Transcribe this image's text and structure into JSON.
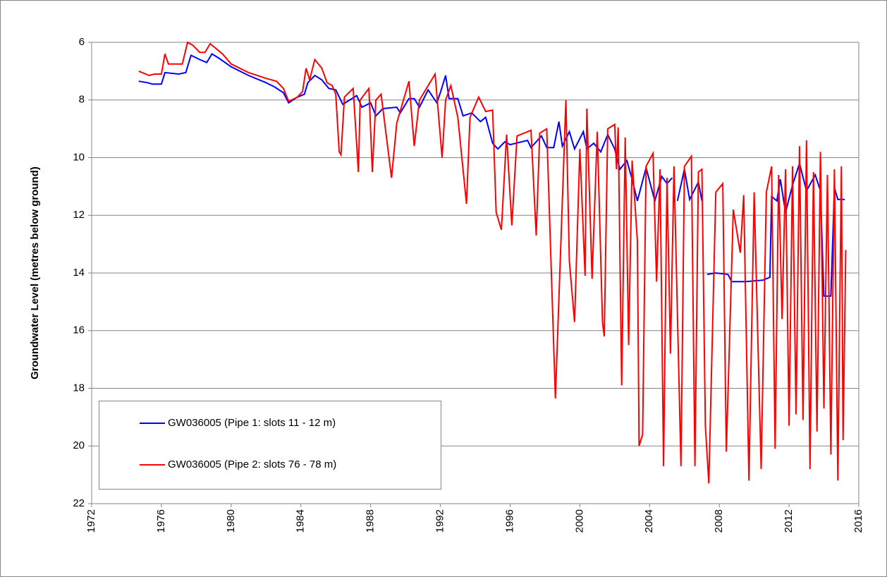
{
  "chart_data": {
    "type": "line",
    "y_label": "Groundwater Level (metres below ground)",
    "ylim": [
      6,
      22
    ],
    "yticks": [
      6,
      8,
      10,
      12,
      14,
      16,
      18,
      20,
      22
    ],
    "y_inverted": true,
    "xlim": [
      1972,
      2016
    ],
    "xticks": [
      1972,
      1976,
      1980,
      1984,
      1988,
      1992,
      1996,
      2000,
      2004,
      2008,
      2012,
      2016
    ],
    "grid": true,
    "legend": "lower left",
    "series": [
      {
        "name": "GW036005 (Pipe 1: slots 11 - 12 m)",
        "color": "#0000ff",
        "x": [
          1974.7,
          1975.2,
          1975.5,
          1976.0,
          1976.2,
          1977.0,
          1977.4,
          1977.7,
          1978.2,
          1978.6,
          1978.9,
          1979.3,
          1980.0,
          1981.0,
          1982.0,
          1982.5,
          1983.0,
          1983.3,
          1983.8,
          1984.2,
          1984.4,
          1984.8,
          1985.2,
          1985.6,
          1986.0,
          1986.4,
          1987.2,
          1987.5,
          1988.0,
          1988.3,
          1988.7,
          1989.5,
          1989.7,
          1990.2,
          1990.5,
          1990.8,
          1991.3,
          1991.8,
          1992.0,
          1992.3,
          1992.5,
          1993.0,
          1993.3,
          1993.8,
          1994.3,
          1994.6,
          1995.0,
          1995.3,
          1995.7,
          1996.0,
          1997.0,
          1997.2,
          1997.8,
          1998.1,
          1998.5,
          1998.8,
          1999.0,
          1999.4,
          1999.7,
          2000.2,
          2000.4,
          2000.8,
          2001.2,
          2001.6,
          2002.0,
          2002.3,
          2002.7,
          2003.0,
          2003.3,
          2003.8,
          2004.3,
          2004.7,
          2005.0,
          2005.3,
          2005.45,
          2005.6,
          2006.0,
          2006.3,
          2006.8,
          2007.0,
          2007.15,
          2007.3,
          2007.8,
          2008.5,
          2008.7,
          2009.5,
          2010.5,
          2010.9,
          2011.0,
          2011.3,
          2011.5,
          2011.8,
          2012.2,
          2012.6,
          2013.0,
          2013.5,
          2013.8,
          2014.0,
          2014.4,
          2014.6,
          2014.8,
          2015.2
        ],
        "values": [
          7.35,
          7.4,
          7.45,
          7.45,
          7.05,
          7.1,
          7.05,
          6.45,
          6.6,
          6.7,
          6.4,
          6.55,
          6.85,
          7.15,
          7.4,
          7.55,
          7.75,
          8.1,
          7.9,
          7.8,
          7.4,
          7.15,
          7.3,
          7.6,
          7.65,
          8.15,
          7.85,
          8.25,
          8.1,
          8.55,
          8.3,
          8.25,
          8.45,
          7.95,
          7.95,
          8.25,
          7.65,
          8.1,
          7.75,
          7.15,
          7.95,
          7.95,
          8.55,
          8.45,
          8.75,
          8.6,
          9.5,
          9.7,
          9.45,
          9.55,
          9.4,
          9.65,
          9.25,
          9.65,
          9.65,
          8.75,
          9.6,
          9.1,
          9.7,
          9.1,
          9.7,
          9.5,
          9.8,
          9.2,
          9.7,
          10.4,
          10.1,
          10.75,
          11.5,
          10.35,
          11.5,
          10.65,
          10.9,
          10.7,
          null,
          11.5,
          10.4,
          11.45,
          10.85,
          11.5,
          null,
          14.05,
          14.0,
          14.05,
          14.3,
          14.3,
          14.25,
          14.15,
          11.35,
          11.5,
          10.75,
          11.9,
          10.95,
          10.2,
          11.15,
          10.6,
          11.15,
          14.8,
          14.8,
          11.05,
          11.45,
          11.45
        ]
      },
      {
        "name": "GW036005 (Pipe 2: slots 76 - 78 m)",
        "color": "#ff0000",
        "x": [
          1974.7,
          1975.3,
          1975.6,
          1976.0,
          1976.2,
          1976.4,
          1977.2,
          1977.5,
          1977.8,
          1978.2,
          1978.5,
          1978.8,
          1979.5,
          1980.0,
          1981.0,
          1982.0,
          1982.6,
          1983.0,
          1983.3,
          1983.8,
          1984.1,
          1984.3,
          1984.5,
          1984.8,
          1985.2,
          1985.5,
          1985.8,
          1986.0,
          1986.2,
          1986.3,
          1986.5,
          1987.0,
          1987.3,
          1987.4,
          1987.9,
          1988.1,
          1988.3,
          1988.6,
          1989.2,
          1989.5,
          1990.2,
          1990.5,
          1990.8,
          1991.7,
          1992.1,
          1992.3,
          1992.6,
          1993.0,
          1993.5,
          1993.7,
          1994.2,
          1994.6,
          1995.0,
          1995.2,
          1995.5,
          1995.8,
          1996.1,
          1996.4,
          1997.2,
          1997.5,
          1997.7,
          1998.1,
          1998.6,
          1999.2,
          1999.4,
          1999.7,
          2000.0,
          2000.3,
          2000.4,
          2000.7,
          2001.0,
          2001.3,
          2001.4,
          2001.6,
          2002.0,
          2002.1,
          2002.2,
          2002.4,
          2002.6,
          2002.8,
          2003.0,
          2003.3,
          2003.4,
          2003.6,
          2003.8,
          2004.2,
          2004.4,
          2004.6,
          2004.8,
          2005.0,
          2005.2,
          2005.4,
          2005.8,
          2006.0,
          2006.4,
          2006.6,
          2006.8,
          2007.0,
          2007.2,
          2007.4,
          2007.8,
          2008.2,
          2008.4,
          2008.8,
          2009.2,
          2009.4,
          2009.7,
          2010.0,
          2010.4,
          2010.7,
          2011.0,
          2011.2,
          2011.4,
          2011.6,
          2011.8,
          2012.0,
          2012.2,
          2012.4,
          2012.6,
          2012.8,
          2013.0,
          2013.2,
          2013.4,
          2013.6,
          2013.8,
          2014.0,
          2014.2,
          2014.4,
          2014.6,
          2014.8,
          2015.0,
          2015.1,
          2015.25
        ],
        "values": [
          7.0,
          7.15,
          7.1,
          7.1,
          6.4,
          6.75,
          6.75,
          6.0,
          6.1,
          6.35,
          6.35,
          6.05,
          6.4,
          6.75,
          7.05,
          7.25,
          7.35,
          7.6,
          8.05,
          7.9,
          7.7,
          6.9,
          7.3,
          6.6,
          6.9,
          7.4,
          7.5,
          7.8,
          9.8,
          9.9,
          7.9,
          7.6,
          10.5,
          8.0,
          7.6,
          10.5,
          8.0,
          7.8,
          10.7,
          8.8,
          7.35,
          9.6,
          8.0,
          7.1,
          10.0,
          8.0,
          7.5,
          8.6,
          11.6,
          8.6,
          7.9,
          8.4,
          8.35,
          11.9,
          12.5,
          9.2,
          12.35,
          9.25,
          9.05,
          12.7,
          9.15,
          9.0,
          18.35,
          8.0,
          13.6,
          15.7,
          9.7,
          14.1,
          8.3,
          14.2,
          9.1,
          15.7,
          16.2,
          9.0,
          8.85,
          10.4,
          8.95,
          17.9,
          9.3,
          16.5,
          10.1,
          12.9,
          20.0,
          19.6,
          10.3,
          9.85,
          14.3,
          10.4,
          20.7,
          10.7,
          16.8,
          10.3,
          20.7,
          10.3,
          9.95,
          20.7,
          10.5,
          10.4,
          19.3,
          21.3,
          11.2,
          10.9,
          20.2,
          11.8,
          13.3,
          11.3,
          21.2,
          11.2,
          20.8,
          11.2,
          10.3,
          20.1,
          10.6,
          15.6,
          10.4,
          19.3,
          10.3,
          18.9,
          9.6,
          19.1,
          9.4,
          20.8,
          10.5,
          19.5,
          9.8,
          18.7,
          10.6,
          20.3,
          10.4,
          21.2,
          10.3,
          19.8,
          13.2
        ]
      }
    ]
  }
}
